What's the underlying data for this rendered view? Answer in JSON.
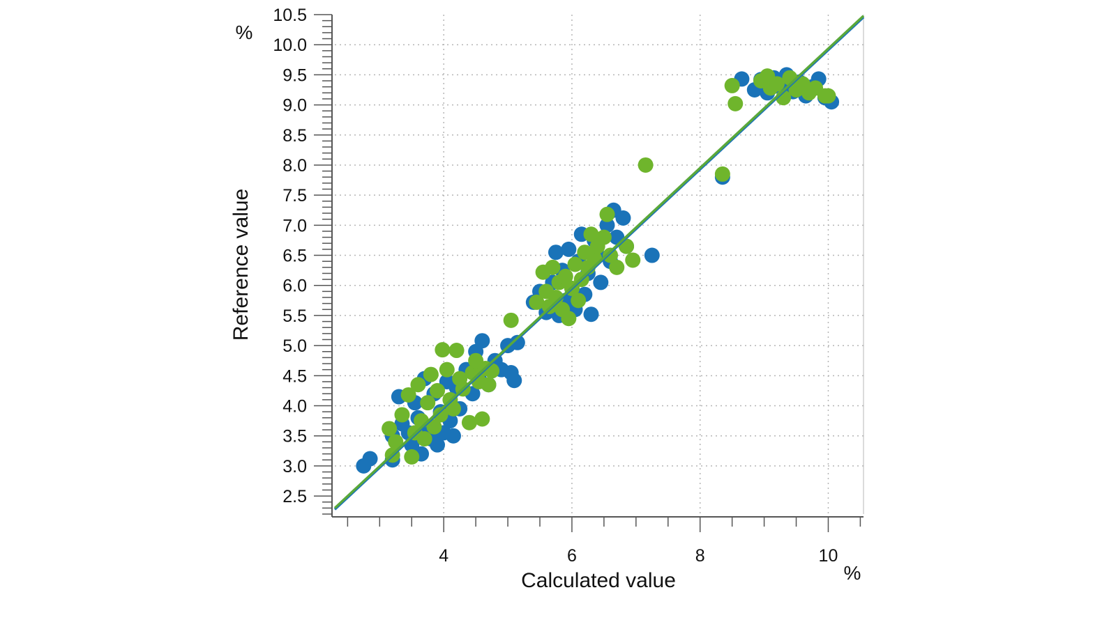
{
  "chart_data": {
    "type": "scatter",
    "xlabel": "Calculated value",
    "ylabel": "Reference value",
    "x_unit": "%",
    "y_unit": "%",
    "xlim": [
      2.3,
      10.55
    ],
    "ylim": [
      2.2,
      10.5
    ],
    "x_ticks": [
      4,
      6,
      8,
      10
    ],
    "x_tick_labels": [
      "4",
      "6",
      "8",
      "10"
    ],
    "y_ticks": [
      2.5,
      3.0,
      3.5,
      4.0,
      4.5,
      5.0,
      5.5,
      6.0,
      6.5,
      7.0,
      7.5,
      8.0,
      8.5,
      9.0,
      9.5,
      10.0,
      10.5
    ],
    "y_tick_labels": [
      "2.5",
      "3.0",
      "3.5",
      "4.0",
      "4.5",
      "5.0",
      "5.5",
      "6.0",
      "6.5",
      "7.0",
      "7.5",
      "8.0",
      "8.5",
      "9.0",
      "9.5",
      "10.0",
      "10.5"
    ],
    "grid": true,
    "colors": {
      "series_blue": "#1a73b8",
      "series_green": "#6fb52c",
      "fit_line": "#5aa83a",
      "grid": "#b5b5b5",
      "axis": "#555555"
    },
    "series": [
      {
        "color": "#1a73b8",
        "points": [
          [
            2.75,
            3.0
          ],
          [
            2.85,
            3.12
          ],
          [
            3.2,
            3.1
          ],
          [
            3.2,
            3.5
          ],
          [
            3.3,
            4.15
          ],
          [
            3.35,
            3.7
          ],
          [
            3.45,
            3.55
          ],
          [
            3.5,
            3.35
          ],
          [
            3.55,
            4.05
          ],
          [
            3.6,
            3.8
          ],
          [
            3.65,
            3.2
          ],
          [
            3.7,
            4.45
          ],
          [
            3.75,
            3.6
          ],
          [
            3.8,
            3.45
          ],
          [
            3.85,
            4.2
          ],
          [
            3.9,
            3.35
          ],
          [
            3.95,
            3.9
          ],
          [
            4.0,
            3.55
          ],
          [
            4.05,
            4.4
          ],
          [
            4.1,
            3.75
          ],
          [
            4.15,
            3.5
          ],
          [
            4.2,
            4.3
          ],
          [
            4.25,
            3.95
          ],
          [
            4.35,
            4.6
          ],
          [
            4.45,
            4.2
          ],
          [
            4.5,
            4.9
          ],
          [
            4.55,
            4.45
          ],
          [
            4.6,
            5.08
          ],
          [
            4.7,
            4.35
          ],
          [
            4.8,
            4.75
          ],
          [
            4.9,
            4.6
          ],
          [
            5.0,
            5.0
          ],
          [
            5.05,
            4.55
          ],
          [
            5.1,
            4.42
          ],
          [
            5.15,
            5.05
          ],
          [
            5.4,
            5.72
          ],
          [
            5.5,
            5.9
          ],
          [
            5.6,
            5.55
          ],
          [
            5.7,
            6.05
          ],
          [
            5.75,
            6.55
          ],
          [
            5.8,
            5.5
          ],
          [
            5.85,
            6.25
          ],
          [
            5.9,
            5.75
          ],
          [
            5.95,
            6.6
          ],
          [
            6.0,
            5.95
          ],
          [
            6.05,
            5.6
          ],
          [
            6.1,
            6.4
          ],
          [
            6.15,
            6.85
          ],
          [
            6.2,
            5.85
          ],
          [
            6.25,
            6.2
          ],
          [
            6.3,
            5.52
          ],
          [
            6.35,
            6.75
          ],
          [
            6.4,
            6.5
          ],
          [
            6.45,
            6.05
          ],
          [
            6.55,
            7.0
          ],
          [
            6.6,
            6.4
          ],
          [
            6.65,
            7.25
          ],
          [
            6.7,
            6.8
          ],
          [
            6.8,
            7.12
          ],
          [
            6.85,
            6.65
          ],
          [
            7.25,
            6.5
          ],
          [
            8.35,
            7.8
          ],
          [
            8.65,
            9.43
          ],
          [
            8.85,
            9.25
          ],
          [
            8.95,
            9.42
          ],
          [
            9.05,
            9.2
          ],
          [
            9.15,
            9.45
          ],
          [
            9.25,
            9.3
          ],
          [
            9.35,
            9.5
          ],
          [
            9.45,
            9.22
          ],
          [
            9.55,
            9.38
          ],
          [
            9.65,
            9.15
          ],
          [
            9.75,
            9.3
          ],
          [
            9.85,
            9.43
          ],
          [
            9.95,
            9.12
          ],
          [
            10.05,
            9.05
          ]
        ]
      },
      {
        "color": "#6fb52c",
        "points": [
          [
            3.15,
            3.62
          ],
          [
            3.2,
            3.18
          ],
          [
            3.25,
            3.4
          ],
          [
            3.35,
            3.85
          ],
          [
            3.45,
            4.18
          ],
          [
            3.5,
            3.15
          ],
          [
            3.55,
            3.55
          ],
          [
            3.6,
            4.35
          ],
          [
            3.65,
            3.75
          ],
          [
            3.7,
            3.45
          ],
          [
            3.75,
            4.05
          ],
          [
            3.8,
            4.52
          ],
          [
            3.85,
            3.65
          ],
          [
            3.9,
            4.25
          ],
          [
            3.95,
            3.85
          ],
          [
            3.98,
            4.93
          ],
          [
            4.05,
            4.6
          ],
          [
            4.1,
            4.1
          ],
          [
            4.15,
            3.95
          ],
          [
            4.2,
            4.92
          ],
          [
            4.25,
            4.45
          ],
          [
            4.3,
            4.28
          ],
          [
            4.4,
            3.72
          ],
          [
            4.45,
            4.55
          ],
          [
            4.5,
            4.75
          ],
          [
            4.55,
            4.4
          ],
          [
            4.6,
            3.78
          ],
          [
            4.65,
            4.62
          ],
          [
            4.7,
            4.35
          ],
          [
            4.75,
            4.58
          ],
          [
            5.05,
            5.42
          ],
          [
            5.45,
            5.72
          ],
          [
            5.55,
            6.22
          ],
          [
            5.6,
            5.9
          ],
          [
            5.65,
            5.65
          ],
          [
            5.7,
            6.3
          ],
          [
            5.75,
            5.8
          ],
          [
            5.8,
            6.05
          ],
          [
            5.85,
            5.6
          ],
          [
            5.9,
            6.15
          ],
          [
            5.95,
            5.45
          ],
          [
            6.0,
            5.95
          ],
          [
            6.05,
            6.35
          ],
          [
            6.1,
            5.75
          ],
          [
            6.15,
            6.1
          ],
          [
            6.2,
            6.55
          ],
          [
            6.25,
            6.3
          ],
          [
            6.3,
            6.85
          ],
          [
            6.35,
            6.45
          ],
          [
            6.4,
            6.65
          ],
          [
            6.5,
            6.8
          ],
          [
            6.55,
            7.18
          ],
          [
            6.6,
            6.5
          ],
          [
            6.7,
            6.3
          ],
          [
            6.85,
            6.65
          ],
          [
            6.95,
            6.42
          ],
          [
            7.15,
            8.0
          ],
          [
            8.35,
            7.85
          ],
          [
            8.5,
            9.32
          ],
          [
            8.55,
            9.02
          ],
          [
            8.95,
            9.4
          ],
          [
            9.05,
            9.48
          ],
          [
            9.1,
            9.28
          ],
          [
            9.2,
            9.35
          ],
          [
            9.3,
            9.12
          ],
          [
            9.4,
            9.45
          ],
          [
            9.5,
            9.25
          ],
          [
            9.6,
            9.35
          ],
          [
            9.7,
            9.2
          ],
          [
            9.8,
            9.28
          ],
          [
            9.95,
            9.15
          ],
          [
            10.0,
            9.15
          ]
        ]
      }
    ],
    "regression_line": {
      "x": [
        2.3,
        10.55
      ],
      "y": [
        2.3,
        10.48
      ]
    }
  }
}
